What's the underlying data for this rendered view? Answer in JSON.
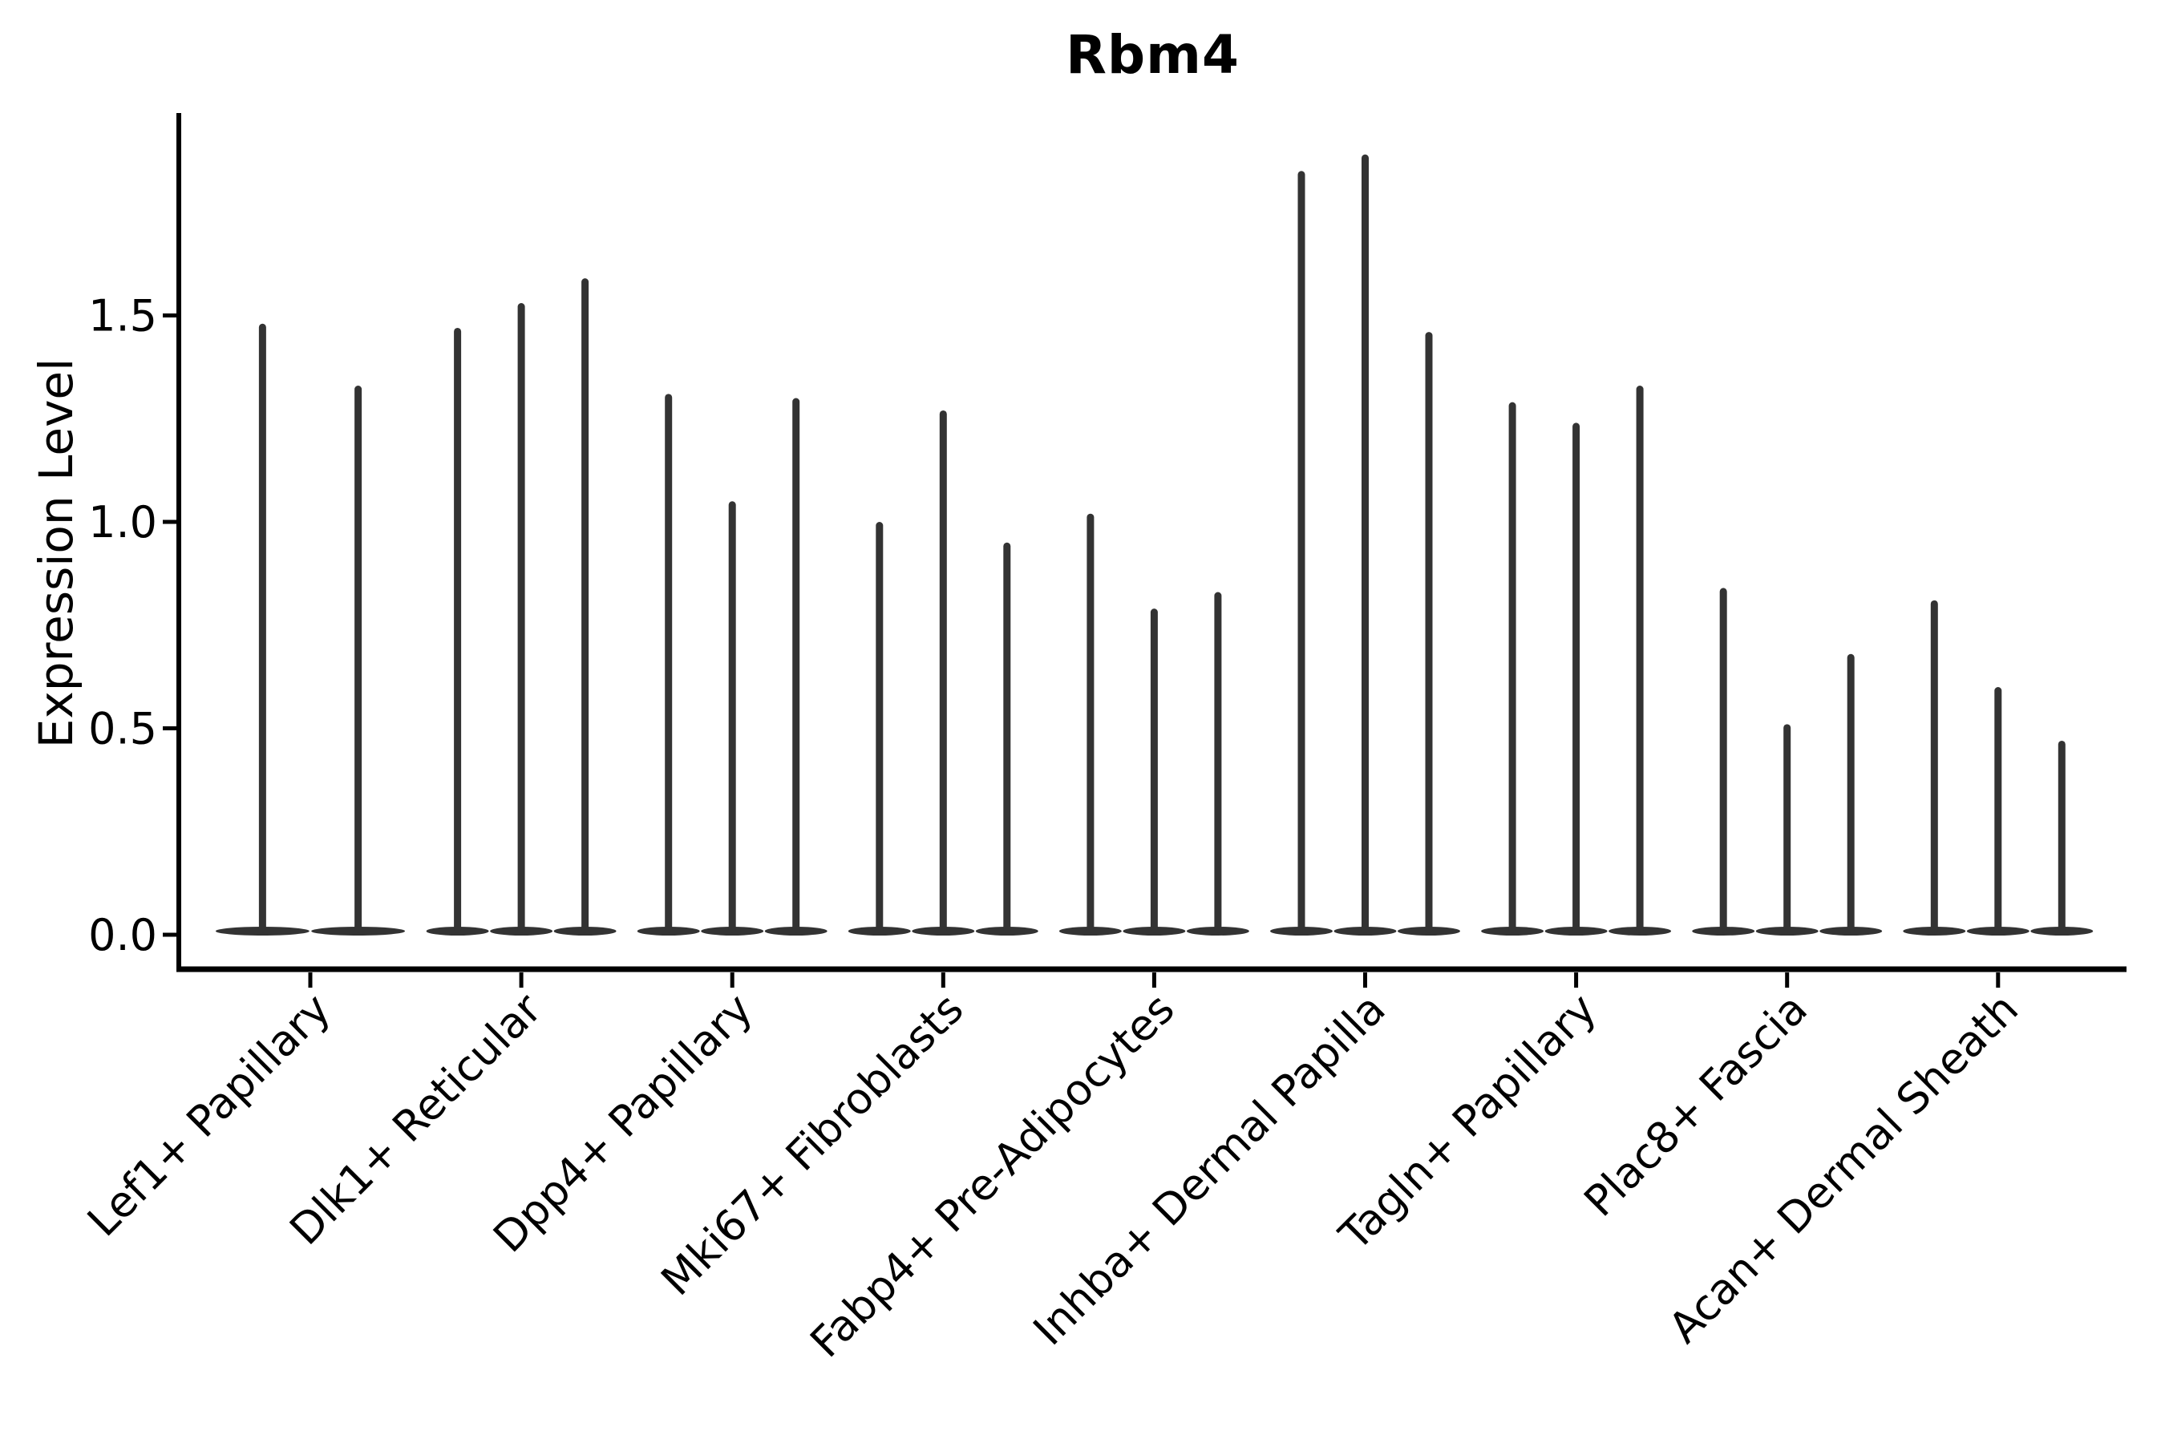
{
  "title": "Rbm4",
  "y_axis": {
    "label": "Expression Level",
    "tick_labels": [
      "0.0",
      "0.5",
      "1.0",
      "1.5"
    ]
  },
  "x_axis": {
    "tick_labels": [
      "Lef1+ Papillary",
      "Dlk1+ Reticular",
      "Dpp4+ Papillary",
      "Mki67+ Fibroblasts",
      "Fabp4+ Pre-Adipocytes",
      "Inhba+ Dermal Papilla",
      "Tagln+ Papillary",
      "Plac8+ Fascia",
      "Acan+ Dermal Sheath"
    ]
  },
  "chart_data": {
    "type": "violin",
    "title": "Rbm4",
    "xlabel": "",
    "ylabel": "Expression Level",
    "ylim": [
      -0.09,
      1.98
    ],
    "yticks": [
      0,
      0.5,
      1,
      1.5
    ],
    "grid": false,
    "legend": false,
    "categories": [
      "Lef1+ Papillary",
      "Dlk1+ Reticular",
      "Dpp4+ Papillary",
      "Mki67+ Fibroblasts",
      "Fabp4+ Pre-Adipocytes",
      "Inhba+ Dermal Papilla",
      "Tagln+ Papillary",
      "Plac8+ Fascia",
      "Acan+ Dermal Sheath"
    ],
    "series": [
      {
        "category": "Lef1+ Papillary",
        "violin_peaks": [
          1.48,
          1.33
        ]
      },
      {
        "category": "Dlk1+ Reticular",
        "violin_peaks": [
          1.47,
          1.53,
          1.59
        ]
      },
      {
        "category": "Dpp4+ Papillary",
        "violin_peaks": [
          1.31,
          1.05,
          1.3
        ]
      },
      {
        "category": "Mki67+ Fibroblasts",
        "violin_peaks": [
          1.0,
          1.27,
          0.95
        ]
      },
      {
        "category": "Fabp4+ Pre-Adipocytes",
        "violin_peaks": [
          1.02,
          0.79,
          0.83
        ]
      },
      {
        "category": "Inhba+ Dermal Papilla",
        "violin_peaks": [
          1.85,
          1.89,
          1.46
        ]
      },
      {
        "category": "Tagln+ Papillary",
        "violin_peaks": [
          1.29,
          1.24,
          1.33
        ]
      },
      {
        "category": "Plac8+ Fascia",
        "violin_peaks": [
          0.84,
          0.51,
          0.68
        ]
      },
      {
        "category": "Acan+ Dermal Sheath",
        "violin_peaks": [
          0.81,
          0.6,
          0.47
        ]
      }
    ],
    "shape_note": "Each violin is a wide flat base at expression 0 with a thin spike rising to its peak value",
    "colors": {
      "violin_fill": "#333333",
      "axis": "#000000",
      "text": "#000000",
      "background": "#ffffff"
    }
  }
}
